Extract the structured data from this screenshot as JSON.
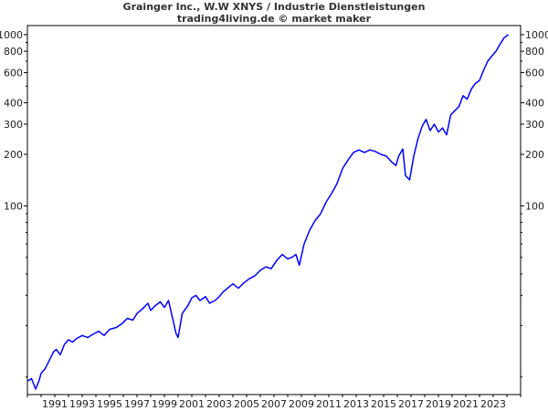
{
  "title": "Grainger Inc., W.W XNYS / Industrie Dienstleistungen",
  "subtitle": "trading4living.de © market maker",
  "chart_data": {
    "type": "line",
    "title": "Grainger Inc., W.W XNYS / Industrie Dienstleistungen",
    "subtitle": "trading4living.de © market maker",
    "xlabel": "",
    "ylabel": "",
    "y_scale": "log",
    "ylim": [
      7.9,
      1130
    ],
    "xlim": [
      1989.0,
      2025.0
    ],
    "grid": false,
    "y_ticks": [
      100,
      200,
      300,
      400,
      600,
      800,
      1000
    ],
    "y_tick_labels": [
      "100",
      "200",
      "300",
      "400",
      "600",
      "800",
      "1000"
    ],
    "x_ticks": [
      1991,
      1993,
      1995,
      1997,
      1999,
      2001,
      2003,
      2005,
      2007,
      2009,
      2011,
      2013,
      2015,
      2017,
      2019,
      2021,
      2023
    ],
    "x_tick_labels": [
      "1991",
      "1993",
      "1995",
      "1997",
      "1999",
      "2001",
      "2003",
      "2005",
      "2007",
      "2009",
      "2011",
      "2013",
      "2015",
      "2017",
      "2019",
      "2021",
      "2023"
    ],
    "series": [
      {
        "color": "#0000ff",
        "x": [
          1989.05,
          1989.3,
          1989.6,
          1989.85,
          1990.0,
          1990.3,
          1990.6,
          1990.9,
          1991.1,
          1991.4,
          1991.7,
          1992.0,
          1992.3,
          1992.6,
          1993.0,
          1993.4,
          1993.8,
          1994.2,
          1994.6,
          1995.0,
          1995.5,
          1995.9,
          1996.3,
          1996.7,
          1997.0,
          1997.4,
          1997.8,
          1998.0,
          1998.3,
          1998.7,
          1999.0,
          1999.3,
          1999.6,
          1999.85,
          2000.0,
          2000.3,
          2000.7,
          2001.0,
          2001.3,
          2001.6,
          2002.0,
          2002.3,
          2002.7,
          2003.0,
          2003.3,
          2003.7,
          2004.0,
          2004.4,
          2004.8,
          2005.2,
          2005.6,
          2006.0,
          2006.4,
          2006.8,
          2007.2,
          2007.6,
          2008.0,
          2008.3,
          2008.6,
          2008.85,
          2009.2,
          2009.6,
          2010.0,
          2010.4,
          2010.8,
          2011.2,
          2011.6,
          2012.0,
          2012.4,
          2012.8,
          2013.2,
          2013.6,
          2014.0,
          2014.4,
          2014.8,
          2015.2,
          2015.6,
          2015.9,
          2016.1,
          2016.4,
          2016.6,
          2016.9,
          2017.2,
          2017.5,
          2017.8,
          2018.1,
          2018.4,
          2018.7,
          2019.0,
          2019.3,
          2019.6,
          2019.9,
          2020.2,
          2020.5,
          2020.8,
          2021.1,
          2021.4,
          2021.7,
          2022.0,
          2022.3,
          2022.6,
          2022.9,
          2023.2,
          2023.5,
          2023.8,
          2024.1
        ],
        "y": [
          9.5,
          9.8,
          8.5,
          9.5,
          10.5,
          11.2,
          12.5,
          14.0,
          14.5,
          13.5,
          15.5,
          16.5,
          16.0,
          16.8,
          17.5,
          17.0,
          17.8,
          18.5,
          17.5,
          19.0,
          19.5,
          20.5,
          22.0,
          21.5,
          23.5,
          25.0,
          27.0,
          24.5,
          26.0,
          27.5,
          25.5,
          28.0,
          22.0,
          18.0,
          17.0,
          23.5,
          26.0,
          29.0,
          30.0,
          28.0,
          29.5,
          27.0,
          28.0,
          29.5,
          31.5,
          33.5,
          35.0,
          33.0,
          35.5,
          37.5,
          39.0,
          42.0,
          44.0,
          43.0,
          48.0,
          52.0,
          49.0,
          50.0,
          52.0,
          45.0,
          60.0,
          72.0,
          82.0,
          90.0,
          105.0,
          118.0,
          135.0,
          165.0,
          185.0,
          205.0,
          212.0,
          205.0,
          212.0,
          208.0,
          200.0,
          195.0,
          180.0,
          172.0,
          195.0,
          215.0,
          150.0,
          142.0,
          195.0,
          245.0,
          290.0,
          320.0,
          275.0,
          300.0,
          270.0,
          285.0,
          260.0,
          340.0,
          360.0,
          380.0,
          440.0,
          420.0,
          480.0,
          520.0,
          540.0,
          620.0,
          700.0,
          750.0,
          800.0,
          880.0,
          960.0,
          1000.0
        ]
      }
    ]
  }
}
